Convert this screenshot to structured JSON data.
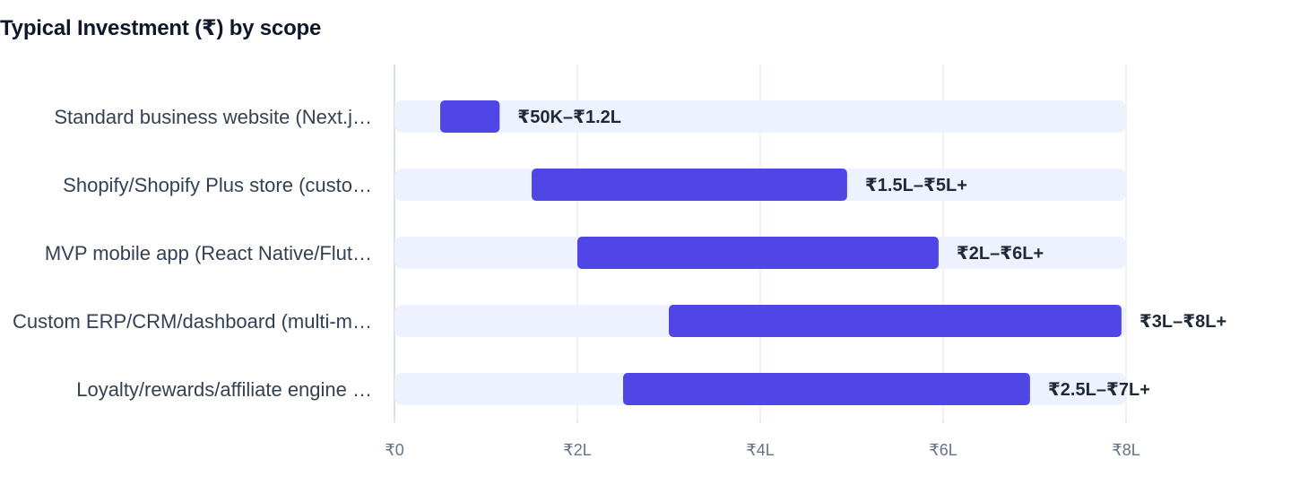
{
  "chart_data": {
    "type": "bar",
    "subtype": "floating-range-horizontal",
    "title": "Typical Investment (₹) by scope",
    "xlabel": "",
    "ylabel": "",
    "xlim": [
      0,
      8
    ],
    "x_unit": "lakh ₹",
    "ticks": [
      {
        "value": 0,
        "label": "₹0"
      },
      {
        "value": 2,
        "label": "₹2L"
      },
      {
        "value": 4,
        "label": "₹4L"
      },
      {
        "value": 6,
        "label": "₹6L"
      },
      {
        "value": 8,
        "label": "₹8L"
      }
    ],
    "grid": true,
    "legend": "none",
    "categories": [
      "Standard business website (Next.j…",
      "Shopify/Shopify Plus store (custo…",
      "MVP mobile app (React Native/Flut…",
      "Custom ERP/CRM/dashboard (multi-m…",
      "Loyalty/rewards/affiliate engine …"
    ],
    "ranges": [
      {
        "low": 0.5,
        "high": 1.15,
        "label": "₹50K–₹1.2L"
      },
      {
        "low": 1.5,
        "high": 4.95,
        "label": "₹1.5L–₹5L+"
      },
      {
        "low": 2.0,
        "high": 5.95,
        "label": "₹2L–₹6L+"
      },
      {
        "low": 3.0,
        "high": 7.95,
        "label": "₹3L–₹8L+"
      },
      {
        "low": 2.5,
        "high": 6.95,
        "label": "₹2.5L–₹7L+"
      }
    ],
    "colors": {
      "bar": "#4f46e5",
      "track": "#eef2fe",
      "grid": "#e5e7eb",
      "axis": "#d1d5db"
    }
  }
}
